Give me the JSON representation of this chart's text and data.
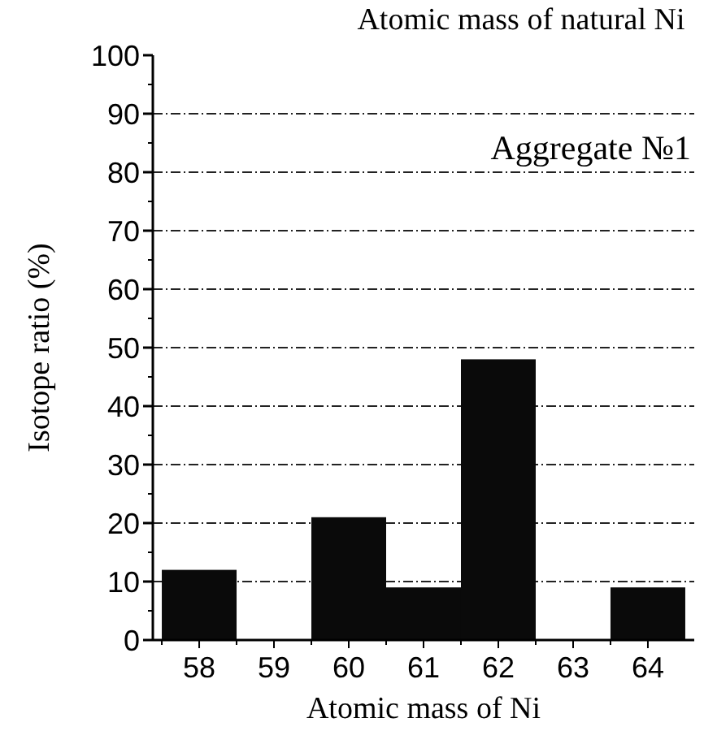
{
  "chart_data": {
    "type": "bar",
    "title": "Atomic mass of natural Ni",
    "xlabel": "Atomic mass of Ni",
    "ylabel": "Isotope ratio (%)",
    "categories": [
      "58",
      "59",
      "60",
      "61",
      "62",
      "63",
      "64"
    ],
    "values": [
      12,
      0,
      21,
      9,
      48,
      0,
      9
    ],
    "color": "#0a0a0a",
    "ylim": [
      0,
      100
    ],
    "yticks": [
      0,
      10,
      20,
      30,
      40,
      50,
      60,
      70,
      80,
      90,
      100
    ],
    "grid": "y",
    "annotations": [
      "Aggregate №1"
    ]
  }
}
